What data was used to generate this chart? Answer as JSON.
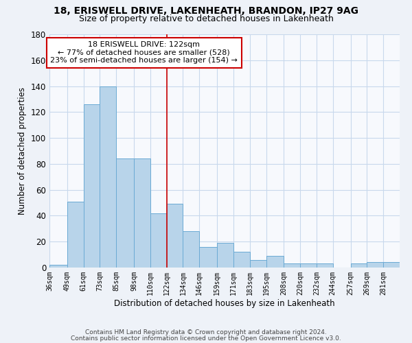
{
  "title1": "18, ERISWELL DRIVE, LAKENHEATH, BRANDON, IP27 9AG",
  "title2": "Size of property relative to detached houses in Lakenheath",
  "xlabel": "Distribution of detached houses by size in Lakenheath",
  "ylabel": "Number of detached properties",
  "footer1": "Contains HM Land Registry data © Crown copyright and database right 2024.",
  "footer2": "Contains public sector information licensed under the Open Government Licence v3.0.",
  "bin_labels": [
    "36sqm",
    "49sqm",
    "61sqm",
    "73sqm",
    "85sqm",
    "98sqm",
    "110sqm",
    "122sqm",
    "134sqm",
    "146sqm",
    "159sqm",
    "171sqm",
    "183sqm",
    "195sqm",
    "208sqm",
    "220sqm",
    "232sqm",
    "244sqm",
    "257sqm",
    "269sqm",
    "281sqm"
  ],
  "bar_heights": [
    2,
    51,
    126,
    140,
    84,
    84,
    42,
    49,
    28,
    16,
    19,
    12,
    6,
    9,
    3,
    3,
    3,
    0,
    3,
    4,
    4
  ],
  "bin_edges": [
    36,
    49,
    61,
    73,
    85,
    98,
    110,
    122,
    134,
    146,
    159,
    171,
    183,
    195,
    208,
    220,
    232,
    244,
    257,
    269,
    281,
    293
  ],
  "bar_color": "#b8d4ea",
  "bar_edge_color": "#6aaad4",
  "reference_line_x": 122,
  "reference_line_color": "#cc0000",
  "annotation_box_color": "#cc0000",
  "annotation_text_line1": "18 ERISWELL DRIVE: 122sqm",
  "annotation_text_line2": "← 77% of detached houses are smaller (528)",
  "annotation_text_line3": "23% of semi-detached houses are larger (154) →",
  "ylim": [
    0,
    180
  ],
  "background_color": "#eef2f8",
  "plot_bg_color": "#f7f9fd",
  "grid_color": "#c8d8ec"
}
